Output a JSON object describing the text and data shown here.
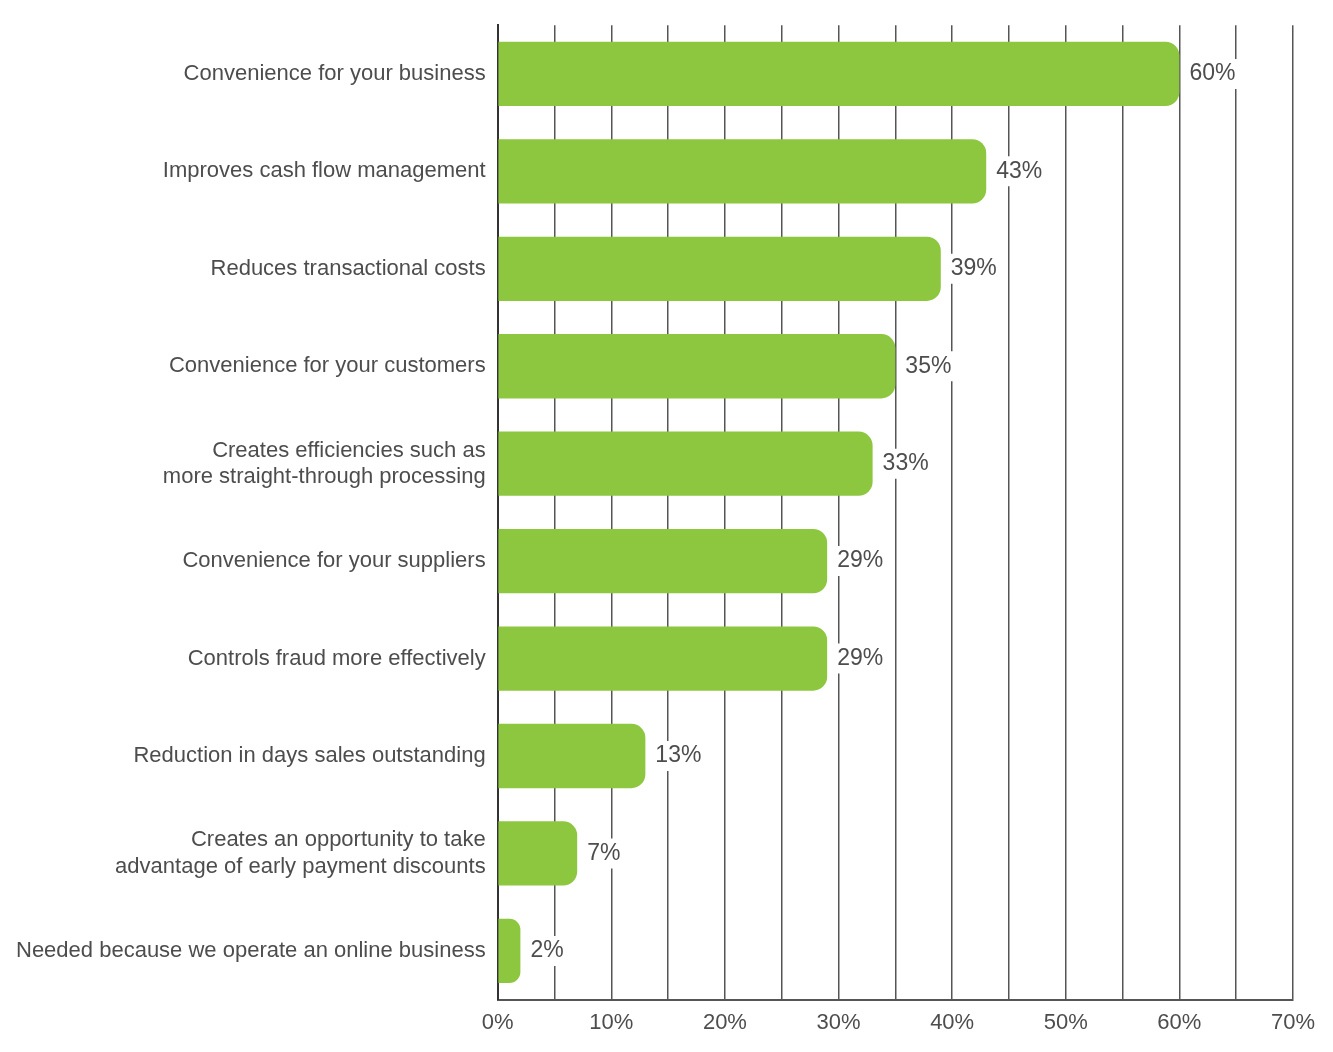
{
  "chart_data": {
    "type": "bar",
    "orientation": "horizontal",
    "categories": [
      "Convenience for your business",
      "Improves cash flow management",
      "Reduces transactional costs",
      "Convenience for your customers",
      "Creates efficiencies such as more straight-through processing",
      "Convenience for your suppliers",
      "Controls fraud more effectively",
      "Reduction in days sales outstanding",
      "Creates an opportunity to take advantage of early payment discounts",
      "Needed because we operate an online business"
    ],
    "values": [
      60,
      43,
      39,
      35,
      33,
      29,
      29,
      13,
      7,
      2
    ],
    "value_labels": [
      "60%",
      "43%",
      "39%",
      "35%",
      "33%",
      "29%",
      "29%",
      "13%",
      "7%",
      "2%"
    ],
    "color": "#8dc63f",
    "xlim": [
      0,
      70
    ],
    "xticks": [
      {
        "value": 0,
        "label": "0%"
      },
      {
        "value": 5,
        "label": null
      },
      {
        "value": 10,
        "label": "10%"
      },
      {
        "value": 15,
        "label": null
      },
      {
        "value": 20,
        "label": "20%"
      },
      {
        "value": 25,
        "label": null
      },
      {
        "value": 30,
        "label": "30%"
      },
      {
        "value": 35,
        "label": null
      },
      {
        "value": 40,
        "label": "40%"
      },
      {
        "value": 45,
        "label": null
      },
      {
        "value": 50,
        "label": "50%"
      },
      {
        "value": 55,
        "label": null
      },
      {
        "value": 60,
        "label": "60%"
      },
      {
        "value": 65,
        "label": null
      },
      {
        "value": 70,
        "label": "70%"
      }
    ],
    "grid": "x",
    "legend": false
  }
}
